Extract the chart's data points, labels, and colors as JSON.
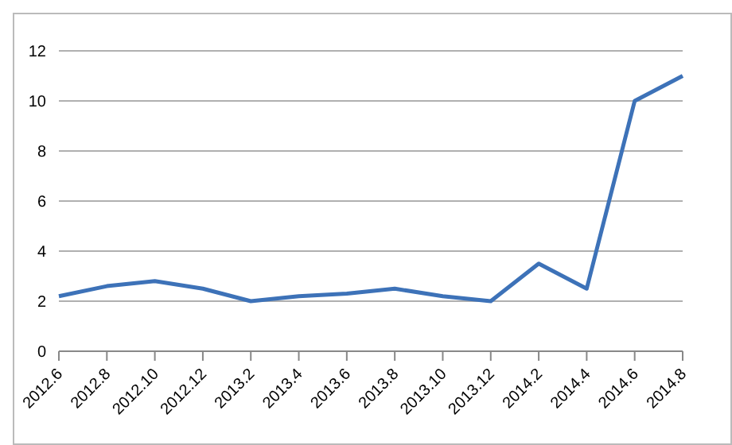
{
  "chart_data": {
    "type": "line",
    "categories": [
      "2012.6",
      "2012.8",
      "2012.10",
      "2012.12",
      "2013.2",
      "2013.4",
      "2013.6",
      "2013.8",
      "2013.10",
      "2013.12",
      "2014.2",
      "2014.4",
      "2014.6",
      "2014.8"
    ],
    "series": [
      {
        "color": "#3d72b8",
        "values": [
          2.2,
          2.6,
          2.8,
          2.5,
          2.0,
          2.2,
          2.3,
          2.5,
          2.2,
          2.0,
          3.5,
          2.5,
          10,
          11
        ]
      }
    ],
    "ylim": [
      0,
      12
    ],
    "yticks": [
      0,
      2,
      4,
      6,
      8,
      10,
      12
    ],
    "grid": "y",
    "legend": false,
    "marker": "none",
    "line_style": "solid"
  }
}
